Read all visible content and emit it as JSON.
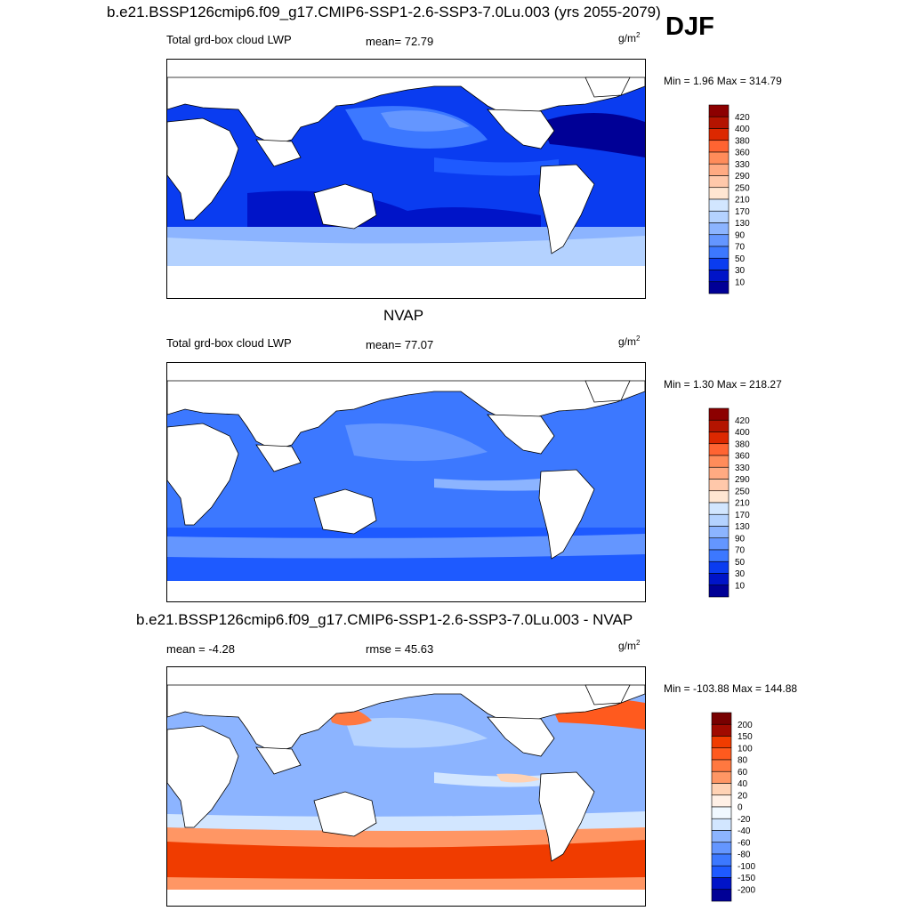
{
  "season": "DJF",
  "colors": {
    "lwp": [
      "#000096",
      "#0014c8",
      "#0a3cf0",
      "#1e5aff",
      "#3c78ff",
      "#6496ff",
      "#8cb4ff",
      "#b4d2ff",
      "#d2e6ff",
      "#f0f8ff",
      "#ffe6d2",
      "#ffc8aa",
      "#ffaa82",
      "#ff8c5a",
      "#ff6432",
      "#ff3c14",
      "#dc2800",
      "#b41400",
      "#8c0000"
    ],
    "diff": [
      "#000096",
      "#0014c8",
      "#0a3cf0",
      "#1e5aff",
      "#3c78ff",
      "#6496ff",
      "#8cb4ff",
      "#b4d2ff",
      "#d2e6ff",
      "#f0f8ff",
      "#fff0e6",
      "#ffd2b4",
      "#ffb48c",
      "#ff9664",
      "#ff7840",
      "#ff5a1e",
      "#f03c00",
      "#c81e00",
      "#a00a00",
      "#780000"
    ]
  },
  "panels": [
    {
      "id": "model",
      "title": "b.e21.BSSP126cmip6.f09_g17.CMIP6-SSP1-2.6-SSP3-7.0Lu.003 (yrs 2055-2079)",
      "left_label": "Total grd-box cloud LWP",
      "mid_label": "mean=  72.79",
      "unit_base": "g/m",
      "unit_exp": "2",
      "minmax": "Min =   1.96 Max = 314.79",
      "levels": [
        "420",
        "400",
        "380",
        "360",
        "330",
        "290",
        "250",
        "210",
        "170",
        "130",
        "90",
        "70",
        "50",
        "30",
        "10"
      ]
    },
    {
      "id": "obs",
      "title": "NVAP",
      "left_label": "Total grd-box cloud LWP",
      "mid_label": "mean=  77.07",
      "unit_base": "g/m",
      "unit_exp": "2",
      "minmax": "Min =   1.30 Max = 218.27",
      "levels": [
        "420",
        "400",
        "380",
        "360",
        "330",
        "290",
        "250",
        "210",
        "170",
        "130",
        "90",
        "70",
        "50",
        "30",
        "10"
      ]
    },
    {
      "id": "diff",
      "title": "b.e21.BSSP126cmip6.f09_g17.CMIP6-SSP1-2.6-SSP3-7.0Lu.003 - NVAP",
      "left_label": "mean =  -4.28",
      "mid_label": "rmse =  45.63",
      "unit_base": "g/m",
      "unit_exp": "2",
      "minmax": "Min = -103.88 Max = 144.88",
      "levels": [
        "200",
        "150",
        "100",
        "80",
        "60",
        "40",
        "20",
        "0",
        "-20",
        "-40",
        "-60",
        "-80",
        "-100",
        "-150",
        "-200"
      ]
    }
  ]
}
